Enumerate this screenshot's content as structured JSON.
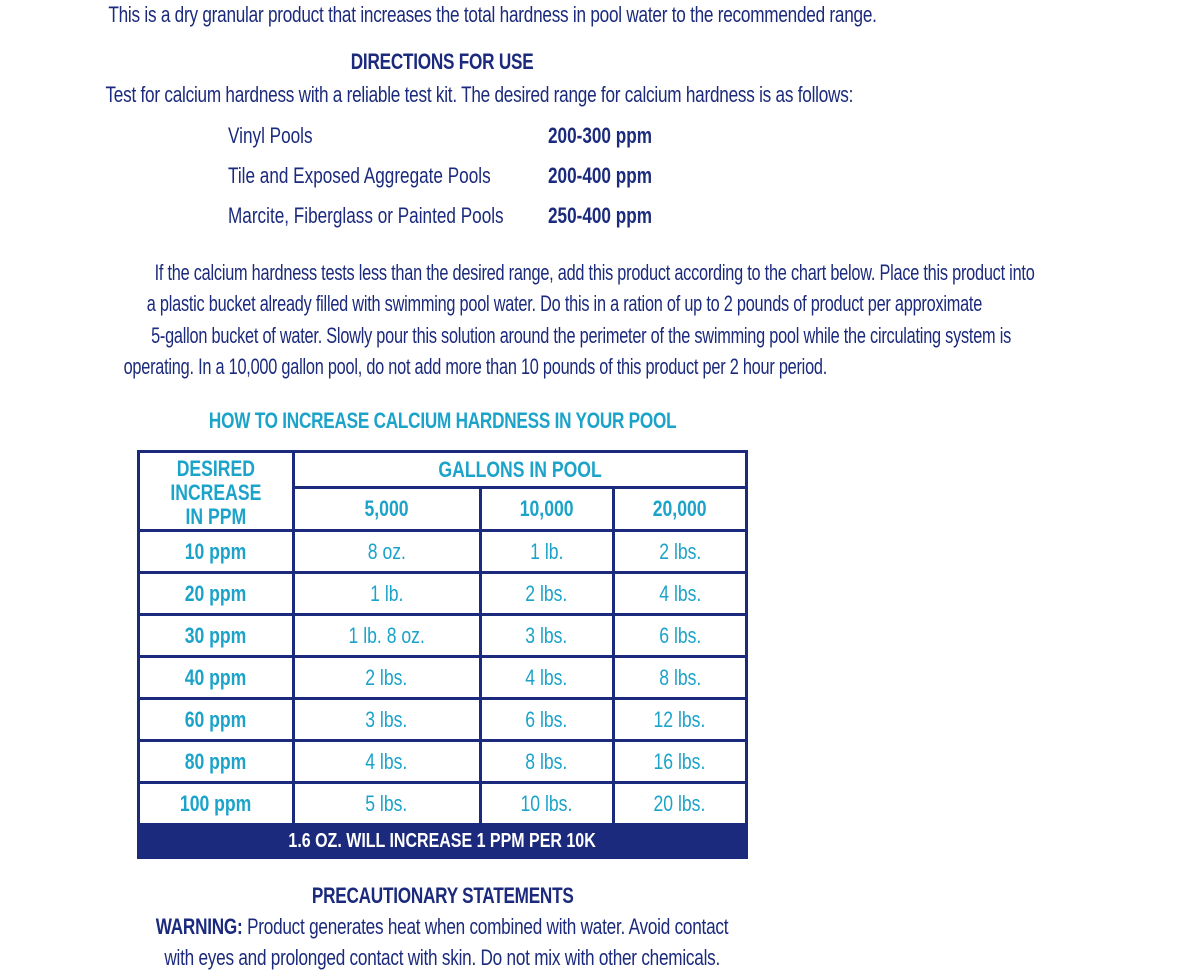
{
  "intro": "This is a dry granular product that increases the total hardness in pool water to the recommended range.",
  "directions": {
    "title": "DIRECTIONS FOR USE",
    "test_line": "Test for calcium hardness with a reliable test kit. The desired range for calcium hardness is as follows:",
    "ranges": [
      {
        "pool": "Vinyl Pools",
        "ppm": "200-300 ppm"
      },
      {
        "pool": "Tile and Exposed Aggregate Pools",
        "ppm": "200-400 ppm"
      },
      {
        "pool": "Marcite, Fiberglass or Painted Pools",
        "ppm": "250-400 ppm"
      }
    ],
    "paragraph": [
      "If the calcium hardness tests less than the desired range, add this product according to the chart below.  Place this product into",
      "a plastic bucket already filled with swimming pool water.  Do this in a ration of up to 2 pounds of product per approximate",
      "5-gallon bucket of water.  Slowly pour this solution around the perimeter of the swimming pool while the circulating system is",
      "operating.  In a 10,000 gallon pool, do not add more than 10 pounds of this product per 2 hour period."
    ]
  },
  "table": {
    "title": "HOW TO INCREASE CALCIUM HARDNESS IN YOUR POOL",
    "row_header": [
      "DESIRED",
      "INCREASE",
      "IN PPM"
    ],
    "group_header": "GALLONS IN POOL",
    "columns": [
      "5,000",
      "10,000",
      "20,000"
    ],
    "rows": [
      [
        "10 ppm",
        "8 oz.",
        "1 lb.",
        "2 lbs."
      ],
      [
        "20 ppm",
        "1 lb.",
        "2 lbs.",
        "4 lbs."
      ],
      [
        "30 ppm",
        "1 lb. 8 oz.",
        "3 lbs.",
        "6 lbs."
      ],
      [
        "40 ppm",
        "2 lbs.",
        "4 lbs.",
        "8 lbs."
      ],
      [
        "60 ppm",
        "3 lbs.",
        "6 lbs.",
        "12 lbs."
      ],
      [
        "80 ppm",
        "4 lbs.",
        "8 lbs.",
        "16 lbs."
      ],
      [
        "100 ppm",
        "5 lbs.",
        "10 lbs.",
        "20 lbs."
      ]
    ],
    "footer": "1.6 OZ. WILL INCREASE 1 PPM PER 10K"
  },
  "precautionary": {
    "title": "PRECAUTIONARY STATEMENTS",
    "warning_label": "WARNING:",
    "warning_text": " Product generates heat when combined with water.  Avoid contact",
    "warning_line2": "with eyes and prolonged contact with skin. Do not mix with other chemicals."
  },
  "colors": {
    "navy": "#1b2a7c",
    "teal": "#1ba3c9"
  }
}
